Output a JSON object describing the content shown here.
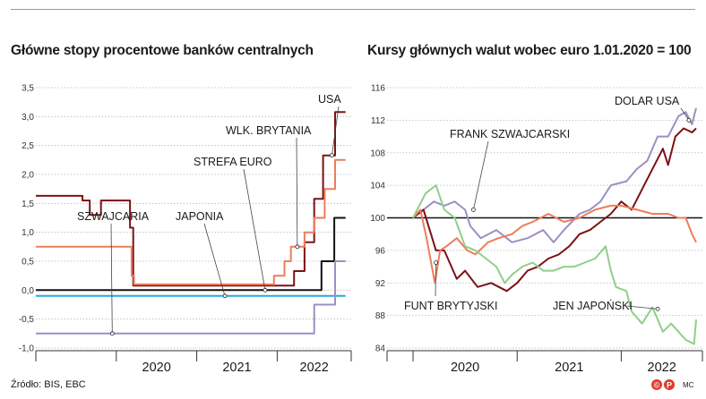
{
  "source": "Źródło: BIS, EBC",
  "credit": "MC",
  "logo_text": "©P",
  "colors": {
    "brown": "#7b1215",
    "salmon": "#ee7c5c",
    "blue": "#2aa6dc",
    "green": "#8fcf8a",
    "lavender": "#9c8fc3",
    "black": "#111111"
  },
  "chart_data": [
    {
      "type": "line",
      "title": "Główne stopy procentowe banków centralnych",
      "ylim": [
        -1.0,
        3.5
      ],
      "yticks": [
        "3,5",
        "3,0",
        "2,5",
        "2,0",
        "1,5",
        "1,0",
        "0,5",
        "0,0",
        "-0,5",
        "-1,0"
      ],
      "x_years": [
        "2020",
        "2021",
        "2022"
      ],
      "series": [
        {
          "name": "USA",
          "color": "#7b1215",
          "points": [
            [
              2019.0,
              1.63
            ],
            [
              2019.58,
              1.63
            ],
            [
              2019.58,
              1.55
            ],
            [
              2019.67,
              1.55
            ],
            [
              2019.67,
              1.3
            ],
            [
              2019.81,
              1.3
            ],
            [
              2019.81,
              1.55
            ],
            [
              2020.17,
              1.55
            ],
            [
              2020.17,
              1.08
            ],
            [
              2020.21,
              1.08
            ],
            [
              2020.21,
              0.08
            ],
            [
              2022.21,
              0.08
            ],
            [
              2022.21,
              0.33
            ],
            [
              2022.34,
              0.33
            ],
            [
              2022.34,
              0.83
            ],
            [
              2022.46,
              0.83
            ],
            [
              2022.46,
              1.58
            ],
            [
              2022.57,
              1.58
            ],
            [
              2022.57,
              2.33
            ],
            [
              2022.72,
              2.33
            ],
            [
              2022.72,
              3.08
            ],
            [
              2022.85,
              3.08
            ]
          ]
        },
        {
          "name": "Wlk. Brytania",
          "color": "#ee7c5c",
          "points": [
            [
              2019.0,
              0.75
            ],
            [
              2020.19,
              0.75
            ],
            [
              2020.19,
              0.25
            ],
            [
              2020.22,
              0.25
            ],
            [
              2020.22,
              0.1
            ],
            [
              2021.96,
              0.1
            ],
            [
              2021.96,
              0.25
            ],
            [
              2022.09,
              0.25
            ],
            [
              2022.09,
              0.5
            ],
            [
              2022.17,
              0.5
            ],
            [
              2022.17,
              0.75
            ],
            [
              2022.34,
              0.75
            ],
            [
              2022.34,
              1.0
            ],
            [
              2022.46,
              1.0
            ],
            [
              2022.46,
              1.25
            ],
            [
              2022.59,
              1.25
            ],
            [
              2022.59,
              1.75
            ],
            [
              2022.72,
              1.75
            ],
            [
              2022.72,
              2.25
            ],
            [
              2022.85,
              2.25
            ]
          ]
        },
        {
          "name": "Strefa euro",
          "color": "#111111",
          "points": [
            [
              2019.0,
              0.0
            ],
            [
              2022.55,
              0.0
            ],
            [
              2022.55,
              0.5
            ],
            [
              2022.71,
              0.5
            ],
            [
              2022.71,
              1.25
            ],
            [
              2022.85,
              1.25
            ]
          ]
        },
        {
          "name": "Japonia",
          "color": "#2aa6dc",
          "points": [
            [
              2019.0,
              -0.1
            ],
            [
              2022.85,
              -0.1
            ]
          ]
        },
        {
          "name": "Szwajcaria",
          "color": "#9c8fc3",
          "points": [
            [
              2019.0,
              -0.75
            ],
            [
              2022.46,
              -0.75
            ],
            [
              2022.46,
              -0.25
            ],
            [
              2022.72,
              -0.25
            ],
            [
              2022.72,
              0.5
            ],
            [
              2022.85,
              0.5
            ]
          ]
        }
      ],
      "annotations": [
        {
          "label": "USA",
          "series": "USA",
          "x": 2022.68,
          "y": 2.33
        },
        {
          "label": "WLK. BRYTANIA",
          "series": "Wlk. Brytania",
          "x": 2022.25,
          "y": 0.75
        },
        {
          "label": "STREFA EURO",
          "series": "Strefa euro",
          "x": 2021.85,
          "y": 0.0
        },
        {
          "label": "JAPONIA",
          "series": "Japonia",
          "x": 2021.35,
          "y": -0.1
        },
        {
          "label": "SZWAJCARIA",
          "series": "Szwajcaria",
          "x": 2019.95,
          "y": -0.75
        }
      ]
    },
    {
      "type": "line",
      "title": "Kursy głównych walut wobec euro 1.01.2020 = 100",
      "ylim": [
        84,
        116
      ],
      "yticks": [
        "116",
        "112",
        "108",
        "104",
        "100",
        "96",
        "92",
        "88",
        "84"
      ],
      "x_years": [
        "2020",
        "2021",
        "2022"
      ],
      "baseline": 100,
      "series": [
        {
          "name": "Dolar USA",
          "color": "#9c8fc3",
          "points": [
            [
              2020.0,
              100
            ],
            [
              2020.1,
              101
            ],
            [
              2020.2,
              102
            ],
            [
              2020.3,
              101.5
            ],
            [
              2020.4,
              102
            ],
            [
              2020.5,
              101
            ],
            [
              2020.55,
              99
            ],
            [
              2020.65,
              97.5
            ],
            [
              2020.8,
              98.5
            ],
            [
              2020.95,
              97
            ],
            [
              2021.1,
              97.5
            ],
            [
              2021.25,
              98.5
            ],
            [
              2021.35,
              97
            ],
            [
              2021.45,
              98.5
            ],
            [
              2021.6,
              100.5
            ],
            [
              2021.7,
              101
            ],
            [
              2021.8,
              102
            ],
            [
              2021.9,
              104
            ],
            [
              2022.05,
              104.5
            ],
            [
              2022.15,
              106
            ],
            [
              2022.25,
              107
            ],
            [
              2022.35,
              110
            ],
            [
              2022.45,
              110
            ],
            [
              2022.55,
              112.5
            ],
            [
              2022.62,
              113
            ],
            [
              2022.68,
              111.5
            ],
            [
              2022.72,
              113.5
            ]
          ]
        },
        {
          "name": "Frank szwajcarski",
          "color": "#7b1215",
          "points": [
            [
              2020.0,
              100
            ],
            [
              2020.1,
              101
            ],
            [
              2020.22,
              96
            ],
            [
              2020.3,
              96
            ],
            [
              2020.42,
              92.5
            ],
            [
              2020.5,
              93.5
            ],
            [
              2020.62,
              91.5
            ],
            [
              2020.75,
              92
            ],
            [
              2020.9,
              91
            ],
            [
              2021.0,
              92
            ],
            [
              2021.1,
              93.5
            ],
            [
              2021.2,
              94
            ],
            [
              2021.3,
              95
            ],
            [
              2021.4,
              95.5
            ],
            [
              2021.5,
              96.5
            ],
            [
              2021.6,
              98
            ],
            [
              2021.7,
              98.5
            ],
            [
              2021.8,
              99.5
            ],
            [
              2021.9,
              100.5
            ],
            [
              2022.0,
              102
            ],
            [
              2022.1,
              101
            ],
            [
              2022.2,
              103.5
            ],
            [
              2022.3,
              106
            ],
            [
              2022.4,
              108.5
            ],
            [
              2022.45,
              106.5
            ],
            [
              2022.52,
              110
            ],
            [
              2022.6,
              111
            ],
            [
              2022.68,
              110.5
            ],
            [
              2022.72,
              111
            ]
          ]
        },
        {
          "name": "Funt brytyjski",
          "color": "#ee7c5c",
          "points": [
            [
              2020.0,
              100
            ],
            [
              2020.07,
              101
            ],
            [
              2020.13,
              97.5
            ],
            [
              2020.21,
              92
            ],
            [
              2020.26,
              96
            ],
            [
              2020.32,
              96.5
            ],
            [
              2020.42,
              97.5
            ],
            [
              2020.52,
              96
            ],
            [
              2020.6,
              95.5
            ],
            [
              2020.72,
              97
            ],
            [
              2020.82,
              97.5
            ],
            [
              2020.95,
              98
            ],
            [
              2021.05,
              99
            ],
            [
              2021.15,
              99.5
            ],
            [
              2021.3,
              100.5
            ],
            [
              2021.45,
              99.5
            ],
            [
              2021.6,
              100
            ],
            [
              2021.75,
              101
            ],
            [
              2021.9,
              101.5
            ],
            [
              2022.0,
              101.5
            ],
            [
              2022.15,
              101
            ],
            [
              2022.3,
              100.5
            ],
            [
              2022.45,
              100.5
            ],
            [
              2022.55,
              100
            ],
            [
              2022.62,
              100
            ],
            [
              2022.68,
              98
            ],
            [
              2022.72,
              97
            ]
          ]
        },
        {
          "name": "Jen japoński",
          "color": "#8fcf8a",
          "points": [
            [
              2020.0,
              100
            ],
            [
              2020.12,
              103
            ],
            [
              2020.22,
              104
            ],
            [
              2020.3,
              101
            ],
            [
              2020.4,
              100
            ],
            [
              2020.5,
              96.5
            ],
            [
              2020.6,
              96
            ],
            [
              2020.7,
              95
            ],
            [
              2020.8,
              94
            ],
            [
              2020.88,
              92
            ],
            [
              2020.95,
              93
            ],
            [
              2021.05,
              94
            ],
            [
              2021.15,
              94.5
            ],
            [
              2021.25,
              93.5
            ],
            [
              2021.35,
              93.5
            ],
            [
              2021.45,
              94
            ],
            [
              2021.55,
              94
            ],
            [
              2021.65,
              94.5
            ],
            [
              2021.75,
              95
            ],
            [
              2021.85,
              96.5
            ],
            [
              2021.9,
              93.5
            ],
            [
              2021.95,
              91.5
            ],
            [
              2022.05,
              91
            ],
            [
              2022.1,
              88.5
            ],
            [
              2022.2,
              87
            ],
            [
              2022.3,
              89
            ],
            [
              2022.4,
              86
            ],
            [
              2022.48,
              87
            ],
            [
              2022.55,
              86
            ],
            [
              2022.62,
              85
            ],
            [
              2022.7,
              84.5
            ],
            [
              2022.72,
              87.5
            ]
          ]
        }
      ],
      "annotations": [
        {
          "label": "DOLAR USA",
          "series": "Dolar USA",
          "x": 2022.65,
          "y": 112
        },
        {
          "label": "FRANK SZWAJCARSKI",
          "series": "Frank szwajcarski",
          "x": 2020.58,
          "y": 101
        },
        {
          "label": "FUNT BRYTYJSKI",
          "series": "Funt brytyjski",
          "x": 2020.22,
          "y": 94.5
        },
        {
          "label": "JEN JAPOŃSKI",
          "series": "Jen japoński",
          "x": 2022.35,
          "y": 88.8
        }
      ]
    }
  ]
}
